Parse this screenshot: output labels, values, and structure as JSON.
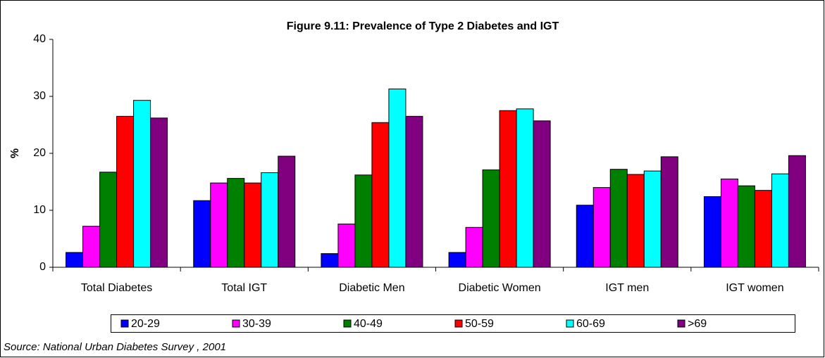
{
  "chart_data": {
    "type": "bar",
    "title": "Figure 9.11: Prevalence of Type 2 Diabetes and IGT",
    "y_label": "%",
    "source": "Source: National Urban Diabetes Survey , 2001",
    "categories": [
      "Total Diabetes",
      "Total IGT",
      "Diabetic Men",
      "Diabetic Women",
      "IGT men",
      "IGT women"
    ],
    "series": [
      {
        "name": "20-29",
        "color": "#0000ff",
        "values": [
          2.6,
          11.7,
          2.4,
          2.6,
          10.9,
          12.4
        ]
      },
      {
        "name": "30-39",
        "color": "#ff00ff",
        "values": [
          7.2,
          14.8,
          7.6,
          7.0,
          14.0,
          15.5
        ]
      },
      {
        "name": "40-49",
        "color": "#008000",
        "values": [
          16.7,
          15.6,
          16.2,
          17.1,
          17.2,
          14.3
        ]
      },
      {
        "name": "50-59",
        "color": "#ff0000",
        "values": [
          26.5,
          14.8,
          25.4,
          27.5,
          16.3,
          13.5
        ]
      },
      {
        "name": "60-69",
        "color": "#00ffff",
        "values": [
          29.3,
          16.6,
          31.3,
          27.8,
          16.9,
          16.4
        ]
      },
      {
        "name": ">69",
        "color": "#800080",
        "values": [
          26.2,
          19.5,
          26.5,
          25.7,
          19.4,
          19.6
        ]
      }
    ],
    "ylim": [
      0,
      40
    ],
    "yticks": [
      0,
      10,
      20,
      30,
      40
    ],
    "grid": false,
    "legend": "bottom"
  }
}
